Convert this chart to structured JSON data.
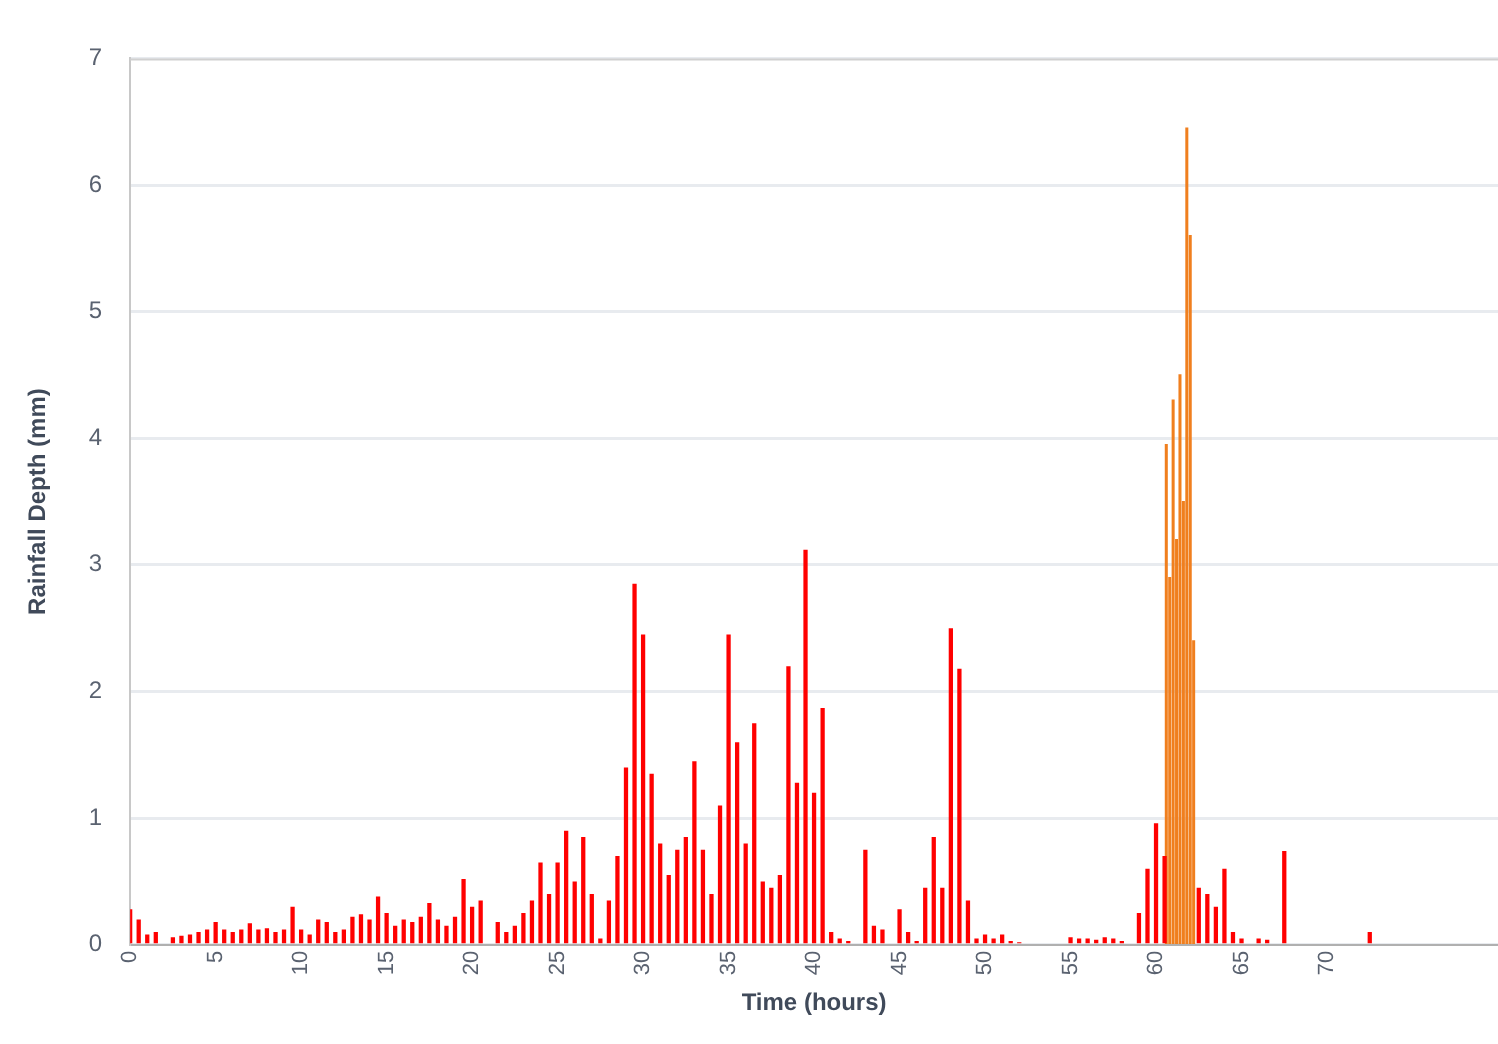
{
  "chart_data": {
    "type": "bar",
    "xlabel": "Time (hours)",
    "ylabel": "Rainfall Depth (mm)",
    "xlim": [
      0,
      80
    ],
    "xticks": [
      0,
      5,
      10,
      15,
      20,
      25,
      30,
      35,
      40,
      45,
      50,
      55,
      60,
      65,
      70
    ],
    "ylim": [
      0,
      7
    ],
    "yticks": [
      0,
      1,
      2,
      3,
      4,
      5,
      6,
      7
    ],
    "grid": "y",
    "legend": false,
    "series": [
      {
        "color": "#ff0000",
        "x": [
          0,
          0.5,
          1,
          1.5,
          2,
          2.5,
          3,
          3.5,
          4,
          4.5,
          5,
          5.5,
          6,
          6.5,
          7,
          7.5,
          8,
          8.5,
          9,
          9.5,
          10,
          10.5,
          11,
          11.5,
          12,
          12.5,
          13,
          13.5,
          14,
          14.5,
          15,
          15.5,
          16,
          16.5,
          17,
          17.5,
          18,
          18.5,
          19,
          19.5,
          20,
          20.5,
          21,
          21.5,
          22,
          22.5,
          23,
          23.5,
          24,
          24.5,
          25,
          25.5,
          26,
          26.5,
          27,
          27.5,
          28,
          28.5,
          29,
          29.5,
          30,
          30.5,
          31,
          31.5,
          32,
          32.5,
          33,
          33.5,
          34,
          34.5,
          35,
          35.5,
          36,
          36.5,
          37,
          37.5,
          38,
          38.5,
          39,
          39.5,
          40,
          40.5,
          41,
          41.5,
          42,
          43,
          43.5,
          44,
          45,
          45.5,
          46,
          46.5,
          47,
          47.5,
          48,
          48.5,
          49,
          49.5,
          50,
          50.5,
          51,
          51.5,
          52,
          55,
          55.5,
          56,
          56.5,
          57,
          57.5,
          58,
          59,
          59.5,
          60,
          60.5,
          62.5,
          63,
          63.5,
          64,
          64.5,
          65,
          66,
          66.5,
          67.5,
          72.5
        ],
        "values": [
          0.28,
          0.2,
          0.08,
          0.1,
          0,
          0.06,
          0.07,
          0.08,
          0.1,
          0.12,
          0.18,
          0.12,
          0.1,
          0.12,
          0.17,
          0.12,
          0.13,
          0.1,
          0.12,
          0.3,
          0.12,
          0.08,
          0.2,
          0.18,
          0.1,
          0.12,
          0.22,
          0.24,
          0.2,
          0.38,
          0.25,
          0.15,
          0.2,
          0.18,
          0.22,
          0.33,
          0.2,
          0.15,
          0.22,
          0.52,
          0.3,
          0.35,
          0,
          0.18,
          0.1,
          0.15,
          0.25,
          0.35,
          0.65,
          0.4,
          0.65,
          0.9,
          0.5,
          0.85,
          0.4,
          0.05,
          0.35,
          0.7,
          1.4,
          2.85,
          2.45,
          1.35,
          0.8,
          0.55,
          0.75,
          0.85,
          1.45,
          0.75,
          0.4,
          1.1,
          2.45,
          1.6,
          0.8,
          1.75,
          0.5,
          0.45,
          0.55,
          2.2,
          1.28,
          3.12,
          1.2,
          1.87,
          0.1,
          0.05,
          0.03,
          0.75,
          0.15,
          0.12,
          0.28,
          0.1,
          0.03,
          0.45,
          0.85,
          0.45,
          2.5,
          2.18,
          0.35,
          0.05,
          0.08,
          0.05,
          0.08,
          0.03,
          0.02,
          0.06,
          0.05,
          0.05,
          0.04,
          0.06,
          0.05,
          0.03,
          0.25,
          0.6,
          0.96,
          0.7,
          0.45,
          0.4,
          0.3,
          0.6,
          0.1,
          0.05,
          0.05,
          0.04,
          0.74,
          0.1
        ]
      },
      {
        "color": "#f07f1e",
        "x": [
          60.6,
          60.8,
          61,
          61.2,
          61.4,
          61.6,
          61.8,
          62,
          62.2
        ],
        "values": [
          3.95,
          2.9,
          4.3,
          3.2,
          4.5,
          3.5,
          6.45,
          5.6,
          2.4
        ]
      }
    ]
  }
}
